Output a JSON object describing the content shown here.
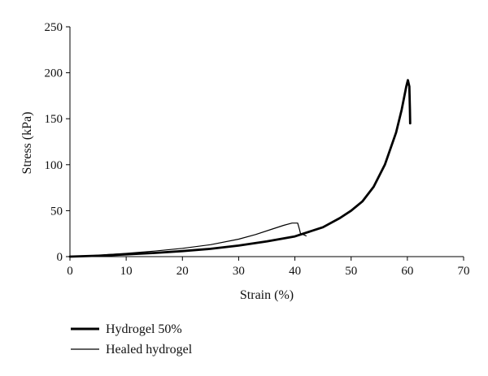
{
  "chart_data": {
    "type": "line",
    "xlabel": "Strain (%)",
    "ylabel": "Stress (kPa)",
    "xlim": [
      0,
      70
    ],
    "ylim": [
      0,
      250
    ],
    "xticks": [
      0,
      10,
      20,
      30,
      40,
      50,
      60,
      70
    ],
    "yticks": [
      0,
      50,
      100,
      150,
      200,
      250
    ],
    "grid": false,
    "legend_position": "bottom-left",
    "series": [
      {
        "name": "Hydrogel 50%",
        "color": "#000000",
        "style": "thick",
        "points": [
          [
            0,
            0
          ],
          [
            5,
            1
          ],
          [
            10,
            2.5
          ],
          [
            15,
            4
          ],
          [
            20,
            6
          ],
          [
            25,
            8.5
          ],
          [
            30,
            12
          ],
          [
            35,
            16.5
          ],
          [
            40,
            22
          ],
          [
            45,
            32
          ],
          [
            48,
            42
          ],
          [
            50,
            50
          ],
          [
            52,
            60
          ],
          [
            54,
            76
          ],
          [
            56,
            100
          ],
          [
            58,
            135
          ],
          [
            59,
            160
          ],
          [
            59.8,
            185
          ],
          [
            60.1,
            192
          ],
          [
            60.35,
            185
          ],
          [
            60.45,
            160
          ],
          [
            60.5,
            145
          ]
        ]
      },
      {
        "name": "Healed hydrogel",
        "color": "#000000",
        "style": "thin",
        "points": [
          [
            0,
            0
          ],
          [
            5,
            1.5
          ],
          [
            10,
            3.5
          ],
          [
            15,
            6
          ],
          [
            20,
            9
          ],
          [
            25,
            13
          ],
          [
            30,
            19
          ],
          [
            33,
            24
          ],
          [
            36,
            30
          ],
          [
            38,
            34
          ],
          [
            39.5,
            36.5
          ],
          [
            40.5,
            36.5
          ],
          [
            40.8,
            30
          ],
          [
            41,
            25
          ],
          [
            41.5,
            24
          ],
          [
            42,
            22.5
          ]
        ]
      }
    ]
  }
}
